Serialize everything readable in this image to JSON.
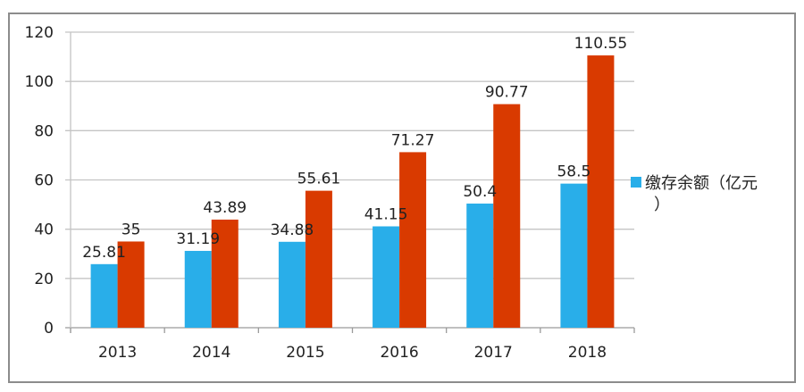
{
  "chart_data": {
    "type": "bar",
    "title": "",
    "xlabel": "",
    "ylabel": "",
    "categories": [
      "2013",
      "2014",
      "2015",
      "2016",
      "2017",
      "2018"
    ],
    "series": [
      {
        "name": "缴存余额（亿元）",
        "color": "#29aee9",
        "values": [
          25.81,
          31.19,
          34.88,
          41.15,
          50.4,
          58.5
        ],
        "labels": [
          "25.81",
          "31.19",
          "34.88",
          "41.15",
          "50.4",
          "58.5"
        ]
      },
      {
        "name": "",
        "color": "#d93a00",
        "values": [
          35,
          43.89,
          55.61,
          71.27,
          90.77,
          110.55
        ],
        "labels": [
          "35",
          "43.89",
          "55.61",
          "71.27",
          "90.77",
          "110.55"
        ]
      }
    ],
    "ylim": [
      0,
      120
    ],
    "yticks": [
      "0",
      "20",
      "40",
      "60",
      "80",
      "100",
      "120"
    ],
    "grid": true,
    "legend_position": "right"
  },
  "legend": {
    "label_line1": "缴存余额（亿元",
    "label_line2": "）"
  }
}
